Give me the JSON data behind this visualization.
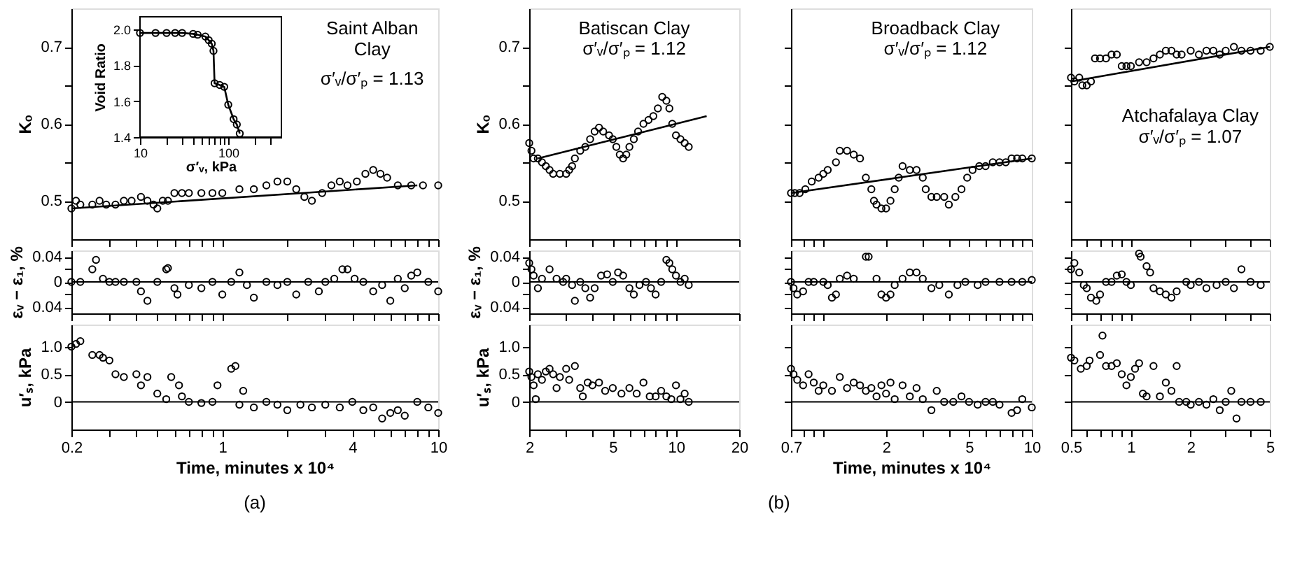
{
  "chart_data": [
    {
      "type": "scatter",
      "ylabel": "Kₒ",
      "log": "x",
      "tick_labels": "y",
      "xlim": [
        0.2,
        10
      ],
      "ylim": [
        0.45,
        0.75
      ],
      "xticks": [
        0.2,
        {
          "value": 0.3,
          "label": null
        },
        {
          "value": 0.4,
          "label": null
        },
        {
          "value": 0.5,
          "label": null
        },
        {
          "value": 0.6,
          "label": null
        },
        {
          "value": 0.7,
          "label": null
        },
        {
          "value": 0.8,
          "label": null
        },
        {
          "value": 0.9,
          "label": null
        },
        1,
        {
          "value": 2,
          "label": null
        },
        {
          "value": 3,
          "label": null
        },
        4,
        {
          "value": 5,
          "label": null
        },
        {
          "value": 6,
          "label": null
        },
        {
          "value": 7,
          "label": null
        },
        {
          "value": 8,
          "label": null
        },
        {
          "value": 9,
          "label": null
        },
        10
      ],
      "yticks": [
        0.5,
        {
          "value": 0.55,
          "label": null
        },
        0.6,
        {
          "value": 0.65,
          "label": null
        },
        0.7
      ],
      "annotations": [
        "Saint Alban\nClay",
        "σ′ᵥ/σ′ₚ = 1.13"
      ],
      "series": [
        {
          "marker": "circle",
          "color": "#000000",
          "x": [
            0.2,
            0.21,
            0.22,
            0.25,
            0.27,
            0.29,
            0.32,
            0.35,
            0.38,
            0.42,
            0.45,
            0.48,
            0.5,
            0.53,
            0.56,
            0.6,
            0.65,
            0.7,
            0.8,
            0.9,
            1.0,
            1.2,
            1.4,
            1.6,
            1.8,
            2.0,
            2.2,
            2.4,
            2.6,
            2.9,
            3.2,
            3.5,
            3.8,
            4.2,
            4.6,
            5.0,
            5.4,
            5.8,
            6.5,
            7.5,
            8.5,
            10
          ],
          "values": [
            0.49,
            0.5,
            0.495,
            0.495,
            0.5,
            0.495,
            0.495,
            0.5,
            0.5,
            0.505,
            0.5,
            0.495,
            0.49,
            0.5,
            0.5,
            0.51,
            0.51,
            0.51,
            0.51,
            0.51,
            0.51,
            0.515,
            0.515,
            0.52,
            0.525,
            0.525,
            0.515,
            0.505,
            0.5,
            0.51,
            0.52,
            0.525,
            0.52,
            0.525,
            0.535,
            0.54,
            0.535,
            0.53,
            0.52,
            0.52,
            0.52,
            0.52
          ]
        },
        {
          "type": "line",
          "color": "#000000",
          "x": [
            0.2,
            8
          ],
          "values": [
            0.49,
            0.52
          ]
        }
      ]
    },
    {
      "type": "line",
      "xlabel": "σ′ᵥ, kPa",
      "ylabel": "Void Ratio",
      "log": "x",
      "xlim": [
        10,
        400
      ],
      "ylim": [
        1.4,
        2.07
      ],
      "xticks": [
        10,
        {
          "value": 20,
          "label": null
        },
        {
          "value": 30,
          "label": null
        },
        {
          "value": 40,
          "label": null
        },
        {
          "value": 50,
          "label": null
        },
        {
          "value": 60,
          "label": null
        },
        {
          "value": 70,
          "label": null
        },
        {
          "value": 80,
          "label": null
        },
        {
          "value": 90,
          "label": null
        },
        100,
        {
          "value": 200,
          "label": null
        },
        {
          "value": 300,
          "label": null
        }
      ],
      "yticks": [
        1.4,
        1.6,
        1.8,
        {
          "value": 2,
          "label": "2.0"
        }
      ],
      "series": [
        {
          "marker": "circle",
          "color": "#000000",
          "x": [
            10,
            15,
            20,
            25,
            30,
            40,
            45,
            55,
            60,
            65,
            68,
            70,
            80,
            90,
            100,
            115,
            125,
            135
          ],
          "values": [
            1.98,
            1.98,
            1.98,
            1.98,
            1.98,
            1.975,
            1.97,
            1.96,
            1.94,
            1.92,
            1.88,
            1.7,
            1.69,
            1.68,
            1.58,
            1.5,
            1.47,
            1.42
          ]
        }
      ]
    },
    {
      "type": "scatter",
      "ylabel": "εᵥ − ε₁, %",
      "log": "x",
      "tick_labels": "y",
      "xlim": [
        0.2,
        10
      ],
      "ylim": [
        -0.05,
        0.05
      ],
      "xticks": [
        0.2,
        {
          "value": 0.3,
          "label": null
        },
        {
          "value": 0.4,
          "label": null
        },
        {
          "value": 0.5,
          "label": null
        },
        {
          "value": 0.6,
          "label": null
        },
        {
          "value": 0.7,
          "label": null
        },
        {
          "value": 0.8,
          "label": null
        },
        {
          "value": 0.9,
          "label": null
        },
        1,
        {
          "value": 2,
          "label": null
        },
        {
          "value": 3,
          "label": null
        },
        4,
        {
          "value": 5,
          "label": null
        },
        {
          "value": 6,
          "label": null
        },
        {
          "value": 7,
          "label": null
        },
        {
          "value": 8,
          "label": null
        },
        {
          "value": 9,
          "label": null
        },
        10
      ],
      "yticks": [
        {
          "value": -0.04,
          "label": "0.04"
        },
        {
          "value": -0.02,
          "label": null
        },
        0,
        {
          "value": 0.02,
          "label": null
        },
        0.04
      ],
      "ref_lines": [
        {
          "axis": "y",
          "value": 0
        }
      ],
      "series": [
        {
          "marker": "circle",
          "color": "#000000",
          "x": [
            0.2,
            0.22,
            0.25,
            0.26,
            0.28,
            0.3,
            0.32,
            0.35,
            0.4,
            0.42,
            0.45,
            0.5,
            0.55,
            0.56,
            0.6,
            0.62,
            0.7,
            0.8,
            0.9,
            1.0,
            1.1,
            1.2,
            1.3,
            1.4,
            1.6,
            1.8,
            2.0,
            2.2,
            2.5,
            2.8,
            3.0,
            3.3,
            3.6,
            3.8,
            4.1,
            4.5,
            5,
            5.5,
            6,
            6.5,
            7,
            7.5,
            8,
            9,
            10
          ],
          "values": [
            0,
            0,
            0.02,
            0.035,
            0.005,
            0,
            0,
            0,
            0,
            -0.015,
            -0.03,
            0,
            0.02,
            0.022,
            -0.01,
            -0.02,
            -0.005,
            -0.01,
            0,
            -0.02,
            0,
            0.015,
            -0.005,
            -0.025,
            0,
            -0.005,
            0,
            -0.02,
            0,
            -0.015,
            0,
            0.005,
            0.02,
            0.02,
            0.005,
            0,
            -0.015,
            -0.005,
            -0.03,
            0.005,
            -0.01,
            0.01,
            0.015,
            0,
            -0.015
          ]
        }
      ]
    },
    {
      "type": "scatter",
      "ylabel": "u′ₛ, kPa",
      "xlabel": "Time, minutes x 10⁴",
      "log": "x",
      "xlim": [
        0.2,
        10
      ],
      "ylim": [
        -0.5,
        1.4
      ],
      "xticks": [
        0.2,
        {
          "value": 0.3,
          "label": null
        },
        {
          "value": 0.4,
          "label": null
        },
        {
          "value": 0.5,
          "label": null
        },
        {
          "value": 0.6,
          "label": null
        },
        {
          "value": 0.7,
          "label": null
        },
        {
          "value": 0.8,
          "label": null
        },
        {
          "value": 0.9,
          "label": null
        },
        1,
        {
          "value": 2,
          "label": null
        },
        {
          "value": 3,
          "label": null
        },
        4,
        {
          "value": 5,
          "label": null
        },
        {
          "value": 6,
          "label": null
        },
        {
          "value": 7,
          "label": null
        },
        {
          "value": 8,
          "label": null
        },
        {
          "value": 9,
          "label": null
        },
        10
      ],
      "yticks": [
        0,
        0.5,
        {
          "value": 1,
          "label": "1.0"
        }
      ],
      "ref_lines": [
        {
          "axis": "y",
          "value": 0
        }
      ],
      "annotations": [
        "(a)"
      ],
      "series": [
        {
          "marker": "circle",
          "color": "#000000",
          "x": [
            0.2,
            0.21,
            0.22,
            0.25,
            0.27,
            0.28,
            0.3,
            0.32,
            0.35,
            0.4,
            0.42,
            0.45,
            0.5,
            0.55,
            0.58,
            0.63,
            0.65,
            0.7,
            0.8,
            0.9,
            0.95,
            1.1,
            1.15,
            1.2,
            1.25,
            1.4,
            1.6,
            1.8,
            2.0,
            2.3,
            2.6,
            3.0,
            3.5,
            4.0,
            4.5,
            5,
            5.5,
            6,
            6.5,
            7,
            8,
            9,
            10
          ],
          "values": [
            1.0,
            1.05,
            1.1,
            0.85,
            0.85,
            0.8,
            0.75,
            0.5,
            0.45,
            0.5,
            0.3,
            0.45,
            0.15,
            0.05,
            0.45,
            0.3,
            0.1,
            0,
            -0.02,
            0,
            0.3,
            0.6,
            0.65,
            -0.05,
            0.2,
            -0.1,
            0,
            -0.05,
            -0.15,
            -0.05,
            -0.1,
            -0.05,
            -0.1,
            0,
            -0.15,
            -0.1,
            -0.3,
            -0.2,
            -0.15,
            -0.25,
            0,
            -0.1,
            -0.2
          ]
        }
      ]
    },
    {
      "type": "scatter",
      "ylabel": "Kₒ",
      "log": "x",
      "tick_labels": "y",
      "xlim": [
        2,
        20
      ],
      "ylim": [
        0.45,
        0.75
      ],
      "xticks": [
        2,
        {
          "value": 3,
          "label": null
        },
        {
          "value": 4,
          "label": null
        },
        5,
        {
          "value": 6,
          "label": null
        },
        {
          "value": 7,
          "label": null
        },
        {
          "value": 8,
          "label": null
        },
        {
          "value": 9,
          "label": null
        },
        10,
        20
      ],
      "yticks": [
        0.5,
        {
          "value": 0.55,
          "label": null
        },
        0.6,
        {
          "value": 0.65,
          "label": null
        },
        0.7
      ],
      "annotations": [
        "Batiscan Clay",
        "σ′ᵥ/σ′ₚ = 1.12"
      ],
      "series": [
        {
          "marker": "circle",
          "color": "#000000",
          "x": [
            2.0,
            2.05,
            2.1,
            2.2,
            2.3,
            2.4,
            2.5,
            2.6,
            2.8,
            3.0,
            3.1,
            3.2,
            3.3,
            3.5,
            3.7,
            3.9,
            4.1,
            4.3,
            4.5,
            4.8,
            5.0,
            5.2,
            5.4,
            5.6,
            5.8,
            6.0,
            6.3,
            6.6,
            7.0,
            7.4,
            7.8,
            8.2,
            8.6,
            9.0,
            9.3,
            9.6,
            10.0,
            10.5,
            11,
            11.5
          ],
          "values": [
            0.575,
            0.565,
            0.555,
            0.555,
            0.55,
            0.545,
            0.54,
            0.535,
            0.535,
            0.535,
            0.54,
            0.545,
            0.555,
            0.565,
            0.57,
            0.58,
            0.59,
            0.595,
            0.59,
            0.585,
            0.58,
            0.57,
            0.56,
            0.555,
            0.56,
            0.57,
            0.58,
            0.59,
            0.6,
            0.605,
            0.61,
            0.62,
            0.635,
            0.63,
            0.62,
            0.6,
            0.585,
            0.58,
            0.575,
            0.57
          ]
        },
        {
          "type": "line",
          "color": "#000000",
          "x": [
            2.2,
            14
          ],
          "values": [
            0.555,
            0.61
          ]
        }
      ]
    },
    {
      "type": "scatter",
      "ylabel": "εᵥ − ε₁, %",
      "log": "x",
      "tick_labels": "y",
      "xlim": [
        2,
        20
      ],
      "ylim": [
        -0.05,
        0.05
      ],
      "xticks": [
        2,
        {
          "value": 3,
          "label": null
        },
        {
          "value": 4,
          "label": null
        },
        5,
        {
          "value": 6,
          "label": null
        },
        {
          "value": 7,
          "label": null
        },
        {
          "value": 8,
          "label": null
        },
        {
          "value": 9,
          "label": null
        },
        10,
        20
      ],
      "yticks": [
        {
          "value": -0.04,
          "label": "0.04"
        },
        {
          "value": -0.02,
          "label": null
        },
        0,
        {
          "value": 0.02,
          "label": null
        },
        0.04
      ],
      "ref_lines": [
        {
          "axis": "y",
          "value": 0
        }
      ],
      "series": [
        {
          "marker": "circle",
          "color": "#000000",
          "x": [
            2.0,
            2.05,
            2.1,
            2.2,
            2.3,
            2.5,
            2.7,
            2.9,
            3.0,
            3.2,
            3.3,
            3.5,
            3.7,
            3.9,
            4.1,
            4.4,
            4.7,
            5.0,
            5.3,
            5.6,
            6.0,
            6.3,
            6.7,
            7.2,
            7.6,
            8,
            8.5,
            9,
            9.3,
            9.6,
            10,
            10.5,
            11,
            11.5
          ],
          "values": [
            0.03,
            0.02,
            0.01,
            -0.01,
            0.005,
            0.02,
            0.005,
            0,
            0.005,
            -0.005,
            -0.03,
            0,
            -0.01,
            -0.025,
            -0.01,
            0.01,
            0.012,
            0,
            0.015,
            0.01,
            -0.01,
            -0.02,
            -0.005,
            0,
            -0.01,
            -0.02,
            0,
            0.035,
            0.03,
            0.02,
            0.01,
            0,
            0.005,
            -0.005
          ]
        }
      ]
    },
    {
      "type": "scatter",
      "ylabel": "u′ₛ, kPa",
      "log": "x",
      "xlim": [
        2,
        20
      ],
      "ylim": [
        -0.5,
        1.4
      ],
      "xticks": [
        2,
        {
          "value": 3,
          "label": null
        },
        {
          "value": 4,
          "label": null
        },
        5,
        {
          "value": 6,
          "label": null
        },
        {
          "value": 7,
          "label": null
        },
        {
          "value": 8,
          "label": null
        },
        {
          "value": 9,
          "label": null
        },
        10,
        20
      ],
      "yticks": [
        0,
        0.5,
        {
          "value": 1,
          "label": "1.0"
        }
      ],
      "ref_lines": [
        {
          "axis": "y",
          "value": 0
        }
      ],
      "series": [
        {
          "marker": "circle",
          "color": "#000000",
          "x": [
            2.0,
            2.05,
            2.1,
            2.15,
            2.2,
            2.3,
            2.4,
            2.5,
            2.6,
            2.7,
            2.8,
            3.0,
            3.1,
            3.3,
            3.5,
            3.6,
            3.8,
            4.0,
            4.3,
            4.6,
            5.0,
            5.5,
            6,
            6.5,
            7,
            7.5,
            8,
            8.5,
            9,
            9.5,
            10,
            10.5,
            11,
            11.5
          ],
          "values": [
            0.55,
            0.45,
            0.3,
            0.05,
            0.5,
            0.4,
            0.55,
            0.6,
            0.5,
            0.25,
            0.45,
            0.6,
            0.4,
            0.65,
            0.25,
            0.1,
            0.35,
            0.3,
            0.35,
            0.2,
            0.25,
            0.15,
            0.25,
            0.15,
            0.35,
            0.1,
            0.1,
            0.2,
            0.1,
            0.05,
            0.3,
            0.05,
            0.15,
            0
          ]
        }
      ]
    },
    {
      "type": "scatter",
      "log": "x",
      "tick_labels": false,
      "xlim": [
        0.7,
        10
      ],
      "ylim": [
        0.45,
        0.75
      ],
      "xticks": [
        0.7,
        {
          "value": 0.8,
          "label": null
        },
        {
          "value": 0.9,
          "label": null
        },
        {
          "value": 1,
          "label": null
        },
        2,
        {
          "value": 3,
          "label": null
        },
        {
          "value": 4,
          "label": null
        },
        5,
        {
          "value": 6,
          "label": null
        },
        {
          "value": 7,
          "label": null
        },
        {
          "value": 8,
          "label": null
        },
        {
          "value": 9,
          "label": null
        },
        10
      ],
      "yticks": [
        0.5,
        {
          "value": 0.55,
          "label": null
        },
        0.6,
        {
          "value": 0.65,
          "label": null
        },
        0.7
      ],
      "annotations": [
        "Broadback Clay",
        "σ′ᵥ/σ′ₚ = 1.12"
      ],
      "series": [
        {
          "marker": "circle",
          "color": "#000000",
          "x": [
            0.7,
            0.73,
            0.77,
            0.82,
            0.88,
            0.95,
            1.0,
            1.05,
            1.15,
            1.2,
            1.3,
            1.4,
            1.5,
            1.6,
            1.7,
            1.75,
            1.8,
            1.9,
            2.0,
            2.1,
            2.2,
            2.3,
            2.4,
            2.6,
            2.8,
            3.0,
            3.1,
            3.3,
            3.5,
            3.8,
            4.0,
            4.3,
            4.6,
            4.9,
            5.2,
            5.6,
            6.0,
            6.5,
            7.0,
            7.5,
            8,
            8.5,
            9,
            10
          ],
          "values": [
            0.51,
            0.51,
            0.51,
            0.515,
            0.525,
            0.53,
            0.535,
            0.54,
            0.55,
            0.565,
            0.565,
            0.56,
            0.555,
            0.53,
            0.515,
            0.5,
            0.495,
            0.49,
            0.49,
            0.5,
            0.515,
            0.53,
            0.545,
            0.54,
            0.54,
            0.53,
            0.515,
            0.505,
            0.505,
            0.505,
            0.495,
            0.505,
            0.515,
            0.53,
            0.54,
            0.545,
            0.545,
            0.55,
            0.55,
            0.55,
            0.555,
            0.555,
            0.555,
            0.555
          ]
        },
        {
          "type": "line",
          "color": "#000000",
          "x": [
            0.7,
            10
          ],
          "values": [
            0.51,
            0.555
          ]
        }
      ]
    },
    {
      "type": "scatter",
      "log": "x",
      "tick_labels": false,
      "xlim": [
        0.7,
        10
      ],
      "ylim": [
        -0.05,
        0.05
      ],
      "xticks": [
        0.7,
        {
          "value": 0.8,
          "label": null
        },
        {
          "value": 0.9,
          "label": null
        },
        {
          "value": 1,
          "label": null
        },
        2,
        {
          "value": 3,
          "label": null
        },
        {
          "value": 4,
          "label": null
        },
        5,
        {
          "value": 6,
          "label": null
        },
        {
          "value": 7,
          "label": null
        },
        {
          "value": 8,
          "label": null
        },
        {
          "value": 9,
          "label": null
        },
        10
      ],
      "yticks": [
        {
          "value": -0.04,
          "label": null
        },
        {
          "value": -0.02,
          "label": null
        },
        0,
        {
          "value": 0.02,
          "label": null
        },
        0.04
      ],
      "ref_lines": [
        {
          "axis": "y",
          "value": 0
        }
      ],
      "series": [
        {
          "marker": "circle",
          "color": "#000000",
          "x": [
            0.7,
            0.72,
            0.75,
            0.8,
            0.85,
            0.9,
            1.0,
            1.05,
            1.1,
            1.15,
            1.2,
            1.3,
            1.4,
            1.6,
            1.65,
            1.8,
            1.9,
            2.0,
            2.1,
            2.2,
            2.4,
            2.6,
            2.8,
            3.0,
            3.3,
            3.6,
            4.0,
            4.4,
            4.8,
            5.5,
            6,
            7,
            8,
            9,
            10
          ],
          "values": [
            0,
            -0.01,
            -0.02,
            -0.015,
            0,
            0,
            0,
            -0.005,
            -0.025,
            -0.02,
            0.005,
            0.01,
            0.005,
            0.04,
            0.04,
            0.005,
            -0.02,
            -0.025,
            -0.02,
            -0.005,
            0.005,
            0.015,
            0.015,
            0.005,
            -0.01,
            -0.005,
            -0.02,
            -0.005,
            0,
            -0.005,
            0,
            0,
            0,
            0,
            0.003
          ]
        }
      ]
    },
    {
      "type": "scatter",
      "xlabel": "Time, minutes x 10⁴",
      "log": "x",
      "tick_labels": "x",
      "xlim": [
        0.7,
        10
      ],
      "ylim": [
        -0.5,
        1.4
      ],
      "xticks": [
        0.7,
        {
          "value": 0.8,
          "label": null
        },
        {
          "value": 0.9,
          "label": null
        },
        {
          "value": 1,
          "label": null
        },
        2,
        {
          "value": 3,
          "label": null
        },
        {
          "value": 4,
          "label": null
        },
        5,
        {
          "value": 6,
          "label": null
        },
        {
          "value": 7,
          "label": null
        },
        {
          "value": 8,
          "label": null
        },
        {
          "value": 9,
          "label": null
        },
        10
      ],
      "yticks": [
        0,
        0.5,
        {
          "value": 1,
          "label": null
        }
      ],
      "ref_lines": [
        {
          "axis": "y",
          "value": 0
        }
      ],
      "annotations": [
        "(b)"
      ],
      "series": [
        {
          "marker": "circle",
          "color": "#000000",
          "x": [
            0.7,
            0.72,
            0.75,
            0.8,
            0.85,
            0.9,
            0.95,
            1.0,
            1.1,
            1.2,
            1.3,
            1.4,
            1.5,
            1.6,
            1.7,
            1.8,
            1.9,
            2.0,
            2.1,
            2.2,
            2.4,
            2.6,
            2.8,
            3.0,
            3.3,
            3.5,
            3.8,
            4.2,
            4.6,
            5,
            5.5,
            6,
            6.5,
            7,
            8,
            8.5,
            9,
            10
          ],
          "values": [
            0.6,
            0.5,
            0.4,
            0.3,
            0.5,
            0.35,
            0.2,
            0.3,
            0.2,
            0.45,
            0.25,
            0.35,
            0.3,
            0.2,
            0.25,
            0.1,
            0.3,
            0.15,
            0.35,
            0.05,
            0.3,
            0.1,
            0.25,
            0.05,
            -0.15,
            0.2,
            0,
            0,
            0.1,
            0,
            -0.05,
            0,
            0,
            -0.05,
            -0.2,
            -0.15,
            0.05,
            -0.1
          ]
        }
      ]
    },
    {
      "type": "scatter",
      "log": "x",
      "tick_labels": false,
      "xlim": [
        0.5,
        5
      ],
      "ylim": [
        0.45,
        0.75
      ],
      "xticks": [
        0.5,
        {
          "value": 0.6,
          "label": null
        },
        {
          "value": 0.7,
          "label": null
        },
        {
          "value": 0.8,
          "label": null
        },
        {
          "value": 0.9,
          "label": null
        },
        1,
        2,
        {
          "value": 3,
          "label": null
        },
        {
          "value": 4,
          "label": null
        },
        5
      ],
      "yticks": [
        0.5,
        {
          "value": 0.55,
          "label": null
        },
        0.6,
        {
          "value": 0.65,
          "label": null
        },
        0.7
      ],
      "annotations": [
        "Atchafalaya Clay",
        "σ′ᵥ/σ′ₚ = 1.07"
      ],
      "series": [
        {
          "marker": "circle",
          "color": "#000000",
          "x": [
            0.5,
            0.52,
            0.55,
            0.57,
            0.6,
            0.63,
            0.66,
            0.7,
            0.75,
            0.8,
            0.85,
            0.9,
            0.95,
            1.0,
            1.1,
            1.2,
            1.3,
            1.4,
            1.5,
            1.6,
            1.7,
            1.8,
            2.0,
            2.2,
            2.4,
            2.6,
            2.8,
            3.0,
            3.3,
            3.6,
            4.0,
            4.5,
            5.0
          ],
          "values": [
            0.66,
            0.655,
            0.66,
            0.65,
            0.65,
            0.655,
            0.685,
            0.685,
            0.685,
            0.69,
            0.69,
            0.675,
            0.675,
            0.675,
            0.68,
            0.68,
            0.685,
            0.69,
            0.695,
            0.695,
            0.69,
            0.69,
            0.695,
            0.69,
            0.695,
            0.695,
            0.69,
            0.695,
            0.7,
            0.695,
            0.695,
            0.695,
            0.7
          ]
        },
        {
          "type": "line",
          "color": "#000000",
          "x": [
            0.5,
            5
          ],
          "values": [
            0.655,
            0.7
          ]
        }
      ]
    },
    {
      "type": "scatter",
      "log": "x",
      "tick_labels": false,
      "xlim": [
        0.5,
        5
      ],
      "ylim": [
        -0.05,
        0.05
      ],
      "xticks": [
        0.5,
        {
          "value": 0.6,
          "label": null
        },
        {
          "value": 0.7,
          "label": null
        },
        {
          "value": 0.8,
          "label": null
        },
        {
          "value": 0.9,
          "label": null
        },
        1,
        2,
        {
          "value": 3,
          "label": null
        },
        {
          "value": 4,
          "label": null
        },
        5
      ],
      "yticks": [
        {
          "value": -0.04,
          "label": null
        },
        {
          "value": -0.02,
          "label": null
        },
        0,
        {
          "value": 0.02,
          "label": null
        },
        0.04
      ],
      "ref_lines": [
        {
          "axis": "y",
          "value": 0
        }
      ],
      "series": [
        {
          "marker": "circle",
          "color": "#000000",
          "x": [
            0.5,
            0.52,
            0.55,
            0.58,
            0.6,
            0.63,
            0.67,
            0.7,
            0.75,
            0.8,
            0.85,
            0.9,
            0.95,
            1.0,
            1.1,
            1.12,
            1.2,
            1.25,
            1.3,
            1.4,
            1.5,
            1.6,
            1.7,
            1.9,
            2.0,
            2.2,
            2.4,
            2.7,
            3.0,
            3.3,
            3.6,
            4.0,
            4.5
          ],
          "values": [
            0.02,
            0.03,
            0.015,
            -0.005,
            -0.01,
            -0.025,
            -0.03,
            -0.02,
            0,
            0,
            0.01,
            0.012,
            0,
            -0.005,
            0.045,
            0.04,
            0.025,
            0.015,
            -0.01,
            -0.015,
            -0.02,
            -0.025,
            -0.015,
            0,
            -0.005,
            0,
            -0.01,
            -0.005,
            0,
            -0.01,
            0.02,
            0,
            -0.005
          ]
        }
      ]
    },
    {
      "type": "scatter",
      "log": "x",
      "tick_labels": "x",
      "xlim": [
        0.5,
        5
      ],
      "ylim": [
        -0.5,
        1.4
      ],
      "xticks": [
        0.5,
        {
          "value": 0.6,
          "label": null
        },
        {
          "value": 0.7,
          "label": null
        },
        {
          "value": 0.8,
          "label": null
        },
        {
          "value": 0.9,
          "label": null
        },
        1,
        2,
        {
          "value": 3,
          "label": null
        },
        {
          "value": 4,
          "label": null
        },
        5
      ],
      "yticks": [
        0,
        0.5,
        {
          "value": 1,
          "label": null
        }
      ],
      "ref_lines": [
        {
          "axis": "y",
          "value": 0
        }
      ],
      "series": [
        {
          "marker": "circle",
          "color": "#000000",
          "x": [
            0.5,
            0.52,
            0.56,
            0.6,
            0.62,
            0.7,
            0.72,
            0.75,
            0.8,
            0.85,
            0.9,
            0.95,
            1.0,
            1.05,
            1.1,
            1.15,
            1.2,
            1.3,
            1.4,
            1.5,
            1.6,
            1.7,
            1.75,
            1.9,
            2.0,
            2.2,
            2.4,
            2.6,
            2.8,
            3.0,
            3.2,
            3.4,
            3.6,
            4.0,
            4.5
          ],
          "values": [
            0.8,
            0.75,
            0.6,
            0.65,
            0.75,
            0.85,
            1.2,
            0.65,
            0.65,
            0.7,
            0.5,
            0.3,
            0.45,
            0.6,
            0.7,
            0.15,
            0.1,
            0.65,
            0.1,
            0.35,
            0.2,
            0.65,
            0,
            0,
            -0.05,
            0,
            -0.05,
            0.05,
            -0.15,
            0,
            0.2,
            -0.3,
            0,
            0,
            0
          ]
        }
      ]
    }
  ]
}
